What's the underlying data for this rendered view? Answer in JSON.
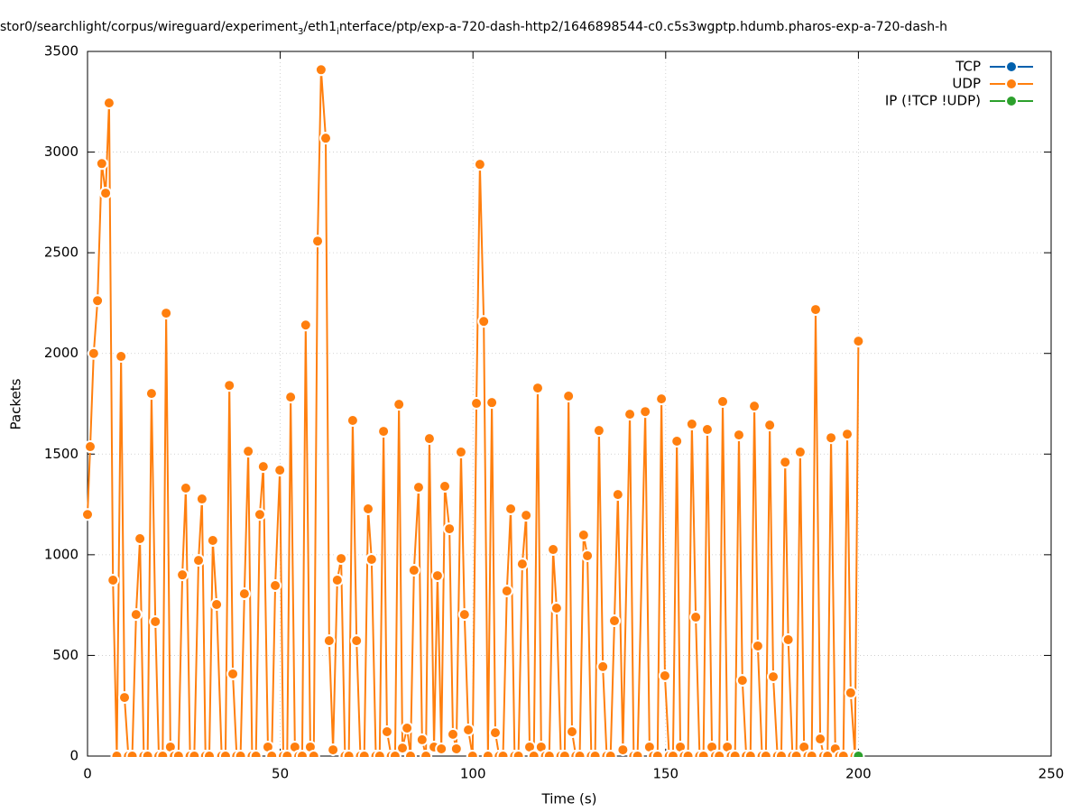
{
  "chart_data": {
    "type": "line",
    "title": [
      "stor0/searchlight/corpus/wireguard/experiment",
      "3",
      "/eth1",
      "i",
      "nterface/ptp/exp-a-720-dash-http2/1646898544-c0.c5s3wgptp.hdumb.pharos-exp-a-720-dash-h"
    ],
    "xlabel": "Time (s)",
    "ylabel": "Packets",
    "xlim": [
      0,
      250
    ],
    "xticks": [
      0,
      50,
      100,
      150,
      200,
      250
    ],
    "ylim": [
      0,
      3500
    ],
    "yticks": [
      0,
      500,
      1000,
      1500,
      2000,
      2500,
      3000,
      3500
    ],
    "grid": true,
    "legend": "top-right",
    "series": [
      {
        "name": "TCP",
        "color": "#0060ad",
        "x": [],
        "values": []
      },
      {
        "name": "UDP",
        "color": "#ff7f0e",
        "x": [
          0,
          0.7,
          1.6,
          2.6,
          3.7,
          4.7,
          5.6,
          6.6,
          7.6,
          8.7,
          9.6,
          10.6,
          11.6,
          12.6,
          13.6,
          14.6,
          15.6,
          16.6,
          17.6,
          18.5,
          19.5,
          20.4,
          21.5,
          22.5,
          23.6,
          24.6,
          25.5,
          26.6,
          27.7,
          28.8,
          29.7,
          30.6,
          31.6,
          32.5,
          33.5,
          34.8,
          35.8,
          36.8,
          37.7,
          38.7,
          39.7,
          40.7,
          41.7,
          42.7,
          43.7,
          44.7,
          45.6,
          46.8,
          47.8,
          48.7,
          49.9,
          50.8,
          51.8,
          52.7,
          53.8,
          54.8,
          55.7,
          56.6,
          57.8,
          58.7,
          59.7,
          60.6,
          61.8,
          62.7,
          63.7,
          64.8,
          65.8,
          66.8,
          67.8,
          68.8,
          69.8,
          70.8,
          71.8,
          72.8,
          73.7,
          74.8,
          75.8,
          76.8,
          77.7,
          78.8,
          79.8,
          80.8,
          81.7,
          82.9,
          83.8,
          84.7,
          85.9,
          86.8,
          87.8,
          88.7,
          89.9,
          90.8,
          91.8,
          92.7,
          93.9,
          94.8,
          95.7,
          96.9,
          97.8,
          98.8,
          99.9,
          100.9,
          101.8,
          102.8,
          103.9,
          104.9,
          105.8,
          106.8,
          107.8,
          108.8,
          109.8,
          110.8,
          111.8,
          112.8,
          113.8,
          114.7,
          115.8,
          116.8,
          117.7,
          118.8,
          119.8,
          120.8,
          121.7,
          122.8,
          123.8,
          124.8,
          125.7,
          126.7,
          127.7,
          128.7,
          129.7,
          130.7,
          131.7,
          132.7,
          133.7,
          134.7,
          135.7,
          136.7,
          137.6,
          138.9,
          140.7,
          141.7,
          142.7,
          144.7,
          145.8,
          146.8,
          147.9,
          148.9,
          149.8,
          150.9,
          151.9,
          152.9,
          153.8,
          154.8,
          155.8,
          156.8,
          157.8,
          158.8,
          159.8,
          160.8,
          162.0,
          162.9,
          163.9,
          164.8,
          166.0,
          167.0,
          168.0,
          169.0,
          169.9,
          170.9,
          172.0,
          173.0,
          173.9,
          175.0,
          176.0,
          177.0,
          177.9,
          179.0,
          180.0,
          181.0,
          181.8,
          182.9,
          183.9,
          184.9,
          185.9,
          186.9,
          187.9,
          188.9,
          190.1,
          191.0,
          192.0,
          192.9,
          194.0,
          195.1,
          196.1,
          197.1,
          198.0,
          199.1,
          200
        ],
        "values": [
          1200,
          1537,
          2000,
          2262,
          2943,
          2796,
          3244,
          874,
          0,
          1985,
          291,
          0,
          0,
          703,
          1080,
          0,
          0,
          1801,
          668,
          0,
          0,
          2200,
          45,
          0,
          0,
          900,
          1331,
          0,
          0,
          972,
          1277,
          0,
          0,
          1071,
          753,
          0,
          0,
          1841,
          408,
          0,
          0,
          806,
          1514,
          0,
          0,
          1200,
          1438,
          45,
          0,
          847,
          1420,
          0,
          0,
          1783,
          45,
          0,
          0,
          2141,
          45,
          0,
          2558,
          3409,
          3069,
          573,
          31,
          874,
          981,
          0,
          0,
          1667,
          573,
          0,
          0,
          1228,
          977,
          0,
          0,
          1613,
          121,
          0,
          0,
          1747,
          40,
          139,
          0,
          923,
          1335,
          81,
          0,
          1577,
          45,
          896,
          36,
          1340,
          1129,
          108,
          36,
          1510,
          703,
          130,
          0,
          1752,
          2939,
          2159,
          0,
          1756,
          116,
          0,
          0,
          820,
          1228,
          0,
          0,
          954,
          1196,
          45,
          0,
          1828,
          45,
          0,
          0,
          1026,
          735,
          0,
          0,
          1788,
          121,
          0,
          0,
          1098,
          995,
          0,
          0,
          1617,
          444,
          0,
          0,
          672,
          1299,
          31,
          1698,
          0,
          0,
          1711,
          45,
          0,
          0,
          1774,
          399,
          0,
          0,
          1564,
          45,
          0,
          0,
          1649,
          690,
          0,
          0,
          1622,
          45,
          0,
          0,
          1761,
          45,
          0,
          0,
          1595,
          376,
          0,
          0,
          1738,
          547,
          0,
          0,
          1644,
          394,
          0,
          0,
          1460,
          578,
          0,
          0,
          1510,
          45,
          0,
          0,
          2218,
          85,
          0,
          0,
          1581,
          36,
          0,
          0,
          1599,
          314,
          0,
          2061
        ]
      },
      {
        "name": "IP (!TCP  !UDP)",
        "color": "#2ca02c",
        "x": [
          200
        ],
        "values": [
          0
        ]
      }
    ]
  }
}
